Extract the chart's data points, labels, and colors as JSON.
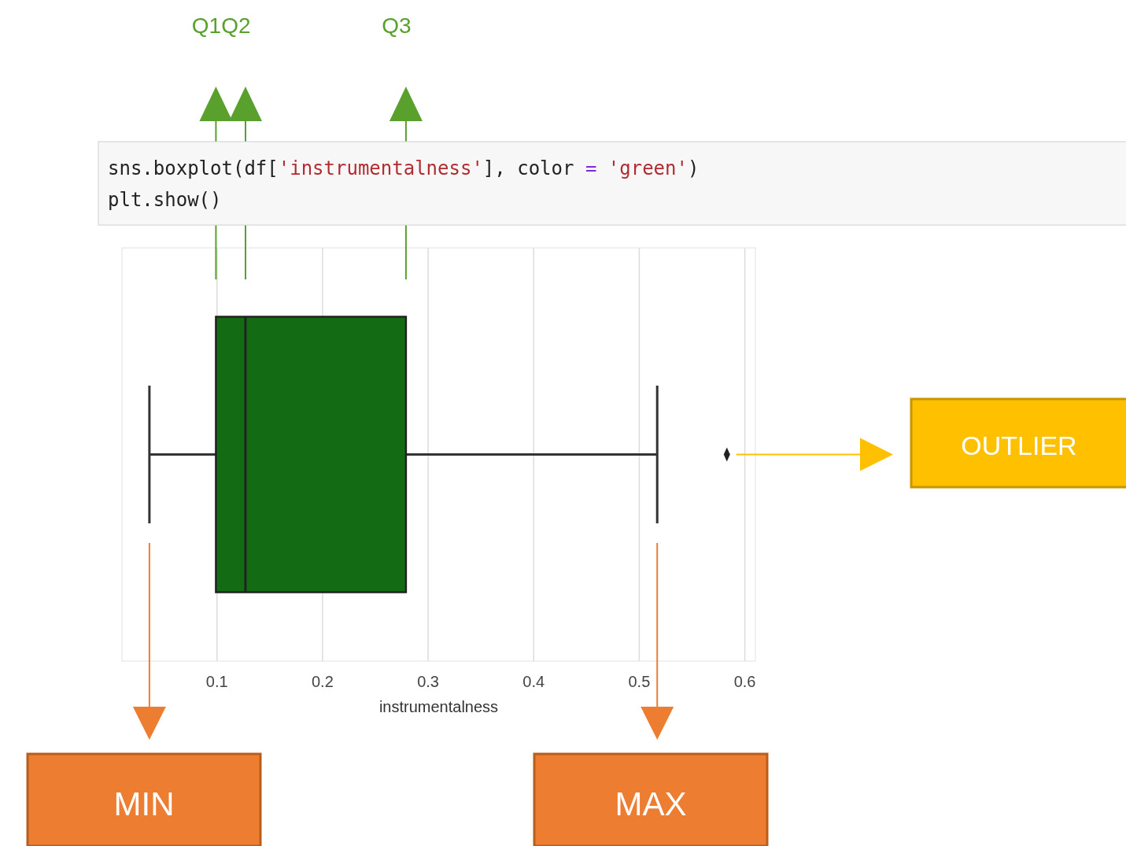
{
  "chart_data": {
    "type": "box",
    "orientation": "horizontal",
    "categories": [
      null
    ],
    "series": [
      {
        "color": "#136b13",
        "boxes": [
          {
            "low": 0.036,
            "q1": 0.099,
            "median": 0.127,
            "q3": 0.279,
            "high": 0.517,
            "outliers": [
              0.583
            ]
          }
        ]
      }
    ],
    "xlabel": "instrumentalness",
    "xlim": [
      0.01,
      0.61
    ],
    "xticks": [
      0.1,
      0.2,
      0.3,
      0.4,
      0.5,
      0.6
    ],
    "grid": "x",
    "tick_labels": "x",
    "annotations": [
      "sns.boxplot(df['instrumentalness'], color = 'green')",
      "plt.show()",
      "Q1",
      "Q2",
      "Q3",
      "MIN",
      "MAX",
      "OUTLIER"
    ]
  }
}
